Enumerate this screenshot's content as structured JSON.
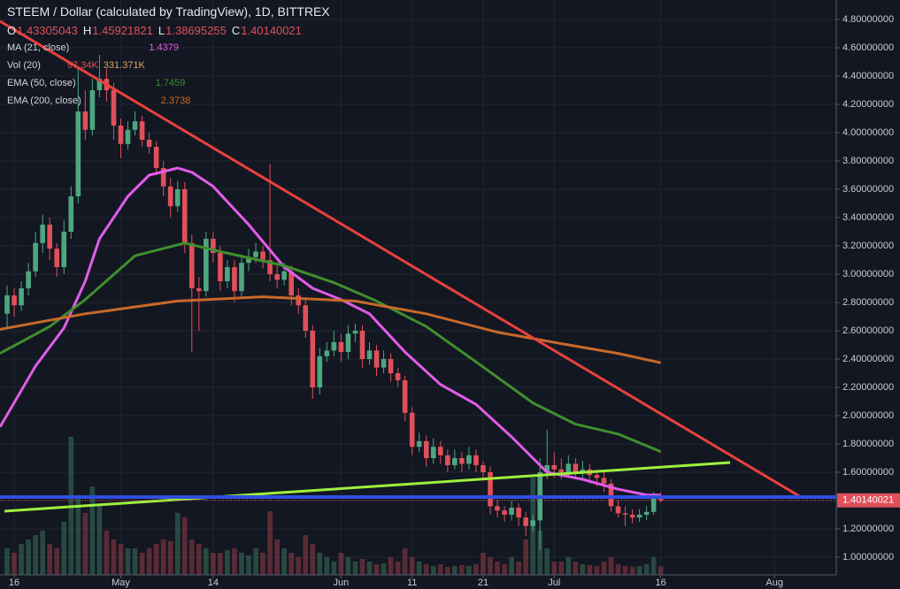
{
  "chart_data": {
    "type": "candlestick",
    "title": "STEEM / Dollar (calculated by TradingView), 1D, BITTREX",
    "ohlc_letters": [
      "O",
      "H",
      "L",
      "C"
    ],
    "up_color": "#4ea67e",
    "down_color": "#e0505a",
    "x": [
      -1,
      0,
      1,
      2,
      3,
      4,
      5,
      6,
      7,
      8,
      9,
      10,
      11,
      12,
      13,
      14,
      15,
      16,
      17,
      18,
      19,
      20,
      21,
      22,
      23,
      24,
      25,
      26,
      27,
      28,
      29,
      30,
      31,
      32,
      33,
      34,
      35,
      36,
      37,
      38,
      39,
      40,
      41,
      42,
      43,
      44,
      45,
      46,
      47,
      48,
      49,
      50,
      51,
      52,
      53,
      54,
      55,
      56,
      57,
      58,
      59,
      60,
      61,
      62,
      63,
      64,
      65,
      66,
      67,
      68,
      69,
      70,
      71,
      72,
      73,
      74,
      75,
      76,
      77,
      78,
      79,
      80,
      81,
      82,
      83,
      84,
      85,
      86,
      87,
      88,
      89,
      90,
      91
    ],
    "ohlc": [
      [
        2.72,
        2.92,
        2.62,
        2.85
      ],
      [
        2.85,
        2.9,
        2.7,
        2.78
      ],
      [
        2.78,
        2.95,
        2.74,
        2.9
      ],
      [
        2.9,
        3.08,
        2.85,
        3.02
      ],
      [
        3.02,
        3.3,
        2.98,
        3.22
      ],
      [
        3.22,
        3.42,
        3.15,
        3.35
      ],
      [
        3.35,
        3.4,
        3.1,
        3.18
      ],
      [
        3.18,
        3.22,
        2.98,
        3.05
      ],
      [
        3.05,
        3.38,
        3.0,
        3.3
      ],
      [
        3.3,
        3.62,
        3.25,
        3.55
      ],
      [
        3.55,
        4.45,
        3.5,
        4.15
      ],
      [
        4.15,
        4.3,
        3.95,
        4.02
      ],
      [
        4.02,
        4.38,
        3.98,
        4.3
      ],
      [
        4.3,
        4.55,
        4.25,
        4.38
      ],
      [
        4.38,
        4.45,
        4.22,
        4.3
      ],
      [
        4.3,
        4.35,
        3.95,
        4.05
      ],
      [
        4.05,
        4.1,
        3.82,
        3.92
      ],
      [
        3.92,
        4.08,
        3.88,
        4.02
      ],
      [
        4.02,
        4.15,
        3.98,
        4.08
      ],
      [
        4.08,
        4.12,
        3.9,
        3.95
      ],
      [
        3.95,
        4.0,
        3.85,
        3.9
      ],
      [
        3.9,
        3.94,
        3.7,
        3.75
      ],
      [
        3.75,
        3.8,
        3.55,
        3.62
      ],
      [
        3.62,
        3.68,
        3.4,
        3.48
      ],
      [
        3.48,
        3.66,
        3.44,
        3.6
      ],
      [
        3.6,
        3.65,
        3.15,
        3.22
      ],
      [
        3.22,
        3.28,
        2.45,
        2.9
      ],
      [
        2.9,
        2.98,
        2.6,
        2.88
      ],
      [
        2.88,
        3.3,
        2.84,
        3.25
      ],
      [
        3.25,
        3.3,
        3.08,
        3.15
      ],
      [
        3.15,
        3.2,
        2.88,
        2.95
      ],
      [
        2.95,
        3.1,
        2.9,
        3.05
      ],
      [
        3.05,
        3.1,
        2.8,
        2.88
      ],
      [
        2.88,
        3.14,
        2.84,
        3.08
      ],
      [
        3.08,
        3.18,
        3.02,
        3.12
      ],
      [
        3.12,
        3.22,
        3.08,
        3.16
      ],
      [
        3.16,
        3.2,
        3.04,
        3.1
      ],
      [
        3.1,
        3.78,
        2.95,
        3.0
      ],
      [
        3.0,
        3.06,
        2.9,
        2.96
      ],
      [
        2.96,
        3.08,
        2.92,
        3.02
      ],
      [
        3.02,
        3.06,
        2.78,
        2.85
      ],
      [
        2.85,
        2.9,
        2.72,
        2.78
      ],
      [
        2.78,
        2.82,
        2.55,
        2.6
      ],
      [
        2.6,
        2.64,
        2.12,
        2.2
      ],
      [
        2.2,
        2.48,
        2.15,
        2.42
      ],
      [
        2.42,
        2.52,
        2.38,
        2.46
      ],
      [
        2.46,
        2.6,
        2.42,
        2.52
      ],
      [
        2.52,
        2.58,
        2.38,
        2.45
      ],
      [
        2.45,
        2.64,
        2.4,
        2.58
      ],
      [
        2.58,
        2.65,
        2.52,
        2.6
      ],
      [
        2.6,
        2.64,
        2.34,
        2.4
      ],
      [
        2.4,
        2.52,
        2.36,
        2.46
      ],
      [
        2.46,
        2.5,
        2.28,
        2.34
      ],
      [
        2.34,
        2.46,
        2.3,
        2.4
      ],
      [
        2.4,
        2.44,
        2.24,
        2.3
      ],
      [
        2.3,
        2.34,
        2.2,
        2.25
      ],
      [
        2.25,
        2.28,
        1.96,
        2.02
      ],
      [
        2.02,
        2.06,
        1.72,
        1.78
      ],
      [
        1.78,
        1.88,
        1.74,
        1.82
      ],
      [
        1.82,
        1.86,
        1.64,
        1.7
      ],
      [
        1.7,
        1.84,
        1.66,
        1.78
      ],
      [
        1.78,
        1.82,
        1.66,
        1.72
      ],
      [
        1.72,
        1.76,
        1.6,
        1.65
      ],
      [
        1.65,
        1.76,
        1.62,
        1.7
      ],
      [
        1.7,
        1.74,
        1.6,
        1.66
      ],
      [
        1.66,
        1.78,
        1.62,
        1.72
      ],
      [
        1.72,
        1.76,
        1.6,
        1.65
      ],
      [
        1.65,
        1.68,
        1.55,
        1.6
      ],
      [
        1.6,
        1.64,
        1.3,
        1.36
      ],
      [
        1.36,
        1.4,
        1.28,
        1.33
      ],
      [
        1.33,
        1.36,
        1.25,
        1.3
      ],
      [
        1.3,
        1.4,
        1.26,
        1.35
      ],
      [
        1.35,
        1.38,
        1.22,
        1.28
      ],
      [
        1.28,
        1.32,
        1.15,
        1.22
      ],
      [
        1.22,
        1.3,
        1.18,
        1.26
      ],
      [
        1.26,
        1.7,
        1.05,
        1.6
      ],
      [
        1.6,
        1.9,
        1.55,
        1.65
      ],
      [
        1.65,
        1.74,
        1.56,
        1.62
      ],
      [
        1.62,
        1.7,
        1.55,
        1.6
      ],
      [
        1.6,
        1.72,
        1.56,
        1.66
      ],
      [
        1.66,
        1.7,
        1.55,
        1.6
      ],
      [
        1.6,
        1.68,
        1.56,
        1.62
      ],
      [
        1.62,
        1.66,
        1.52,
        1.58
      ],
      [
        1.58,
        1.62,
        1.5,
        1.56
      ],
      [
        1.56,
        1.6,
        1.46,
        1.52
      ],
      [
        1.52,
        1.55,
        1.32,
        1.36
      ],
      [
        1.36,
        1.4,
        1.28,
        1.31
      ],
      [
        1.31,
        1.36,
        1.22,
        1.3
      ],
      [
        1.3,
        1.34,
        1.24,
        1.28
      ],
      [
        1.28,
        1.34,
        1.25,
        1.3
      ],
      [
        1.3,
        1.36,
        1.26,
        1.32
      ],
      [
        1.32,
        1.46,
        1.3,
        1.433
      ],
      [
        1.43305043,
        1.45921821,
        1.38695255,
        1.40140021
      ]
    ],
    "xlim": [
      -2,
      115.7
    ],
    "xticks": [
      {
        "value": 0,
        "label": "16"
      },
      {
        "value": 15,
        "label": "May"
      },
      {
        "value": 28,
        "label": "14"
      },
      {
        "value": 46,
        "label": "Jun"
      },
      {
        "value": 56,
        "label": "11"
      },
      {
        "value": 66,
        "label": "21"
      },
      {
        "value": 76,
        "label": "Jul"
      },
      {
        "value": 91,
        "label": "16"
      },
      {
        "value": 107,
        "label": "Aug"
      }
    ],
    "ylim": [
      0.875,
      4.9375
    ],
    "yticks": [
      {
        "value": 1.0,
        "label": "1.00000000"
      },
      {
        "value": 1.2,
        "label": "1.20000000"
      },
      {
        "value": 1.4,
        "label": "1.40000000"
      },
      {
        "value": 1.6,
        "label": "1.60000000"
      },
      {
        "value": 1.8,
        "label": "1.80000000"
      },
      {
        "value": 2.0,
        "label": "2.00000000"
      },
      {
        "value": 2.2,
        "label": "2.20000000"
      },
      {
        "value": 2.4,
        "label": "2.40000000"
      },
      {
        "value": 2.6,
        "label": "2.60000000"
      },
      {
        "value": 2.8,
        "label": "2.80000000"
      },
      {
        "value": 3.0,
        "label": "3.00000000"
      },
      {
        "value": 3.2,
        "label": "3.20000000"
      },
      {
        "value": 3.4,
        "label": "3.40000000"
      },
      {
        "value": 3.6,
        "label": "3.60000000"
      },
      {
        "value": 3.8,
        "label": "3.80000000"
      },
      {
        "value": 4.0,
        "label": "4.00000000"
      },
      {
        "value": 4.2,
        "label": "4.20000000"
      },
      {
        "value": 4.4,
        "label": "4.40000000"
      },
      {
        "value": 4.6,
        "label": "4.60000000"
      },
      {
        "value": 4.8,
        "label": "4.80000000"
      }
    ],
    "grid": true,
    "volume": {
      "name": "Vol (20)",
      "vlim": [
        0,
        2000
      ],
      "last_label": "97.34K",
      "ma_label": "331.371K",
      "values": [
        300,
        250,
        350,
        400,
        450,
        500,
        350,
        300,
        600,
        1560,
        900,
        700,
        1000,
        800,
        500,
        400,
        350,
        300,
        300,
        250,
        300,
        350,
        400,
        380,
        700,
        650,
        400,
        350,
        300,
        250,
        250,
        280,
        300,
        250,
        220,
        300,
        250,
        720,
        400,
        300,
        250,
        200,
        450,
        350,
        250,
        200,
        150,
        250,
        200,
        150,
        180,
        150,
        120,
        130,
        200,
        150,
        300,
        200,
        150,
        120,
        100,
        120,
        90,
        100,
        110,
        100,
        120,
        250,
        200,
        150,
        120,
        200,
        150,
        400,
        1100,
        500,
        300,
        150,
        150,
        200,
        150,
        120,
        110,
        100,
        150,
        200,
        120,
        100,
        90,
        100,
        120,
        200,
        97.34
      ]
    },
    "lines": [
      {
        "name": "MA (21, close)",
        "color": "#e15ce8",
        "x": [
          -2,
          3,
          7,
          10,
          12,
          16,
          19,
          23,
          25,
          28,
          33,
          38,
          42,
          46,
          50,
          55,
          60,
          65,
          70,
          75,
          80,
          85,
          89,
          91
        ],
        "values": [
          1.92,
          2.35,
          2.62,
          2.95,
          3.25,
          3.55,
          3.7,
          3.75,
          3.72,
          3.62,
          3.35,
          3.05,
          2.9,
          2.82,
          2.72,
          2.45,
          2.22,
          2.08,
          1.85,
          1.6,
          1.55,
          1.48,
          1.44,
          1.4379
        ]
      },
      {
        "name": "EMA (50, close)",
        "color": "#3f8f2d",
        "x": [
          -2,
          5,
          10,
          17,
          24,
          29,
          38,
          45,
          51,
          58,
          65,
          73,
          79,
          85,
          91
        ],
        "values": [
          2.44,
          2.63,
          2.82,
          3.13,
          3.22,
          3.16,
          3.06,
          2.94,
          2.81,
          2.63,
          2.38,
          2.09,
          1.94,
          1.87,
          1.7459
        ]
      },
      {
        "name": "EMA (200, close)",
        "color": "#c8692a",
        "x": [
          -2,
          10,
          23,
          35,
          48,
          58,
          68,
          78,
          85,
          91
        ],
        "values": [
          2.61,
          2.72,
          2.81,
          2.84,
          2.81,
          2.72,
          2.59,
          2.5,
          2.44,
          2.3738
        ]
      }
    ]
  }
}
